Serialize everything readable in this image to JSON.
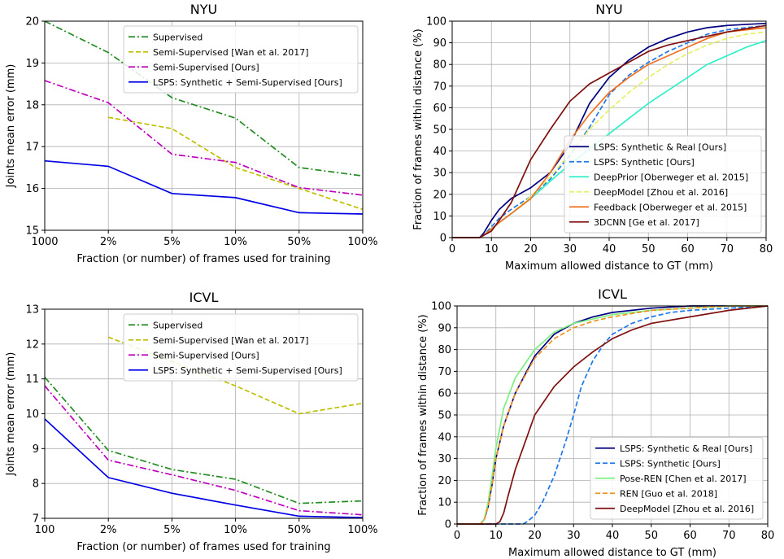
{
  "chart_data": [
    {
      "type": "line",
      "title": "NYU",
      "xlabel": "Fraction (or number) of frames used for training",
      "ylabel": "Joints mean error (mm)",
      "categories": [
        "1000",
        "2%",
        "5%",
        "10%",
        "50%",
        "100%"
      ],
      "ylim": [
        15,
        20
      ],
      "yticks": [
        15,
        16,
        17,
        18,
        19,
        20
      ],
      "grid": true,
      "legend_position": "upper-right",
      "series": [
        {
          "name": "Supervised",
          "color": "#228b22",
          "dash": "dashdot",
          "values": [
            20.0,
            19.25,
            18.17,
            17.68,
            16.5,
            16.3
          ]
        },
        {
          "name": "Semi-Supervised [Wan et al. 2017]",
          "color": "#bfbf00",
          "dash": "dashed",
          "values": [
            null,
            17.7,
            17.43,
            16.5,
            16.0,
            15.5
          ]
        },
        {
          "name": "Semi-Supervised [Ours]",
          "color": "#bf00bf",
          "dash": "dashdot",
          "values": [
            18.58,
            18.05,
            16.82,
            16.62,
            16.02,
            15.84
          ]
        },
        {
          "name": "LSPS: Synthetic + Semi-Supervised [Ours]",
          "color": "#0000e6",
          "dash": "solid",
          "values": [
            16.66,
            16.53,
            15.88,
            15.78,
            15.42,
            15.39
          ]
        }
      ]
    },
    {
      "type": "line",
      "title": "NYU",
      "xlabel": "Maximum allowed distance to GT (mm)",
      "ylabel": "Fraction of frames within distance (%)",
      "xlim": [
        0,
        80
      ],
      "ylim": [
        0,
        100
      ],
      "xticks": [
        0,
        10,
        20,
        30,
        40,
        50,
        60,
        70,
        80
      ],
      "yticks": [
        0,
        10,
        20,
        30,
        40,
        50,
        60,
        70,
        80,
        90,
        100
      ],
      "grid": true,
      "legend_position": "lower-right",
      "series": [
        {
          "name": "LSPS: Synthetic & Real [Ours]",
          "color": "#00007f",
          "dash": "solid",
          "x": [
            0,
            7,
            8,
            10,
            12,
            15,
            20,
            25,
            30,
            35,
            40,
            45,
            50,
            55,
            60,
            65,
            70,
            80
          ],
          "y": [
            0,
            0,
            2,
            8,
            13,
            18,
            23,
            30,
            43,
            62,
            74,
            82,
            88,
            92,
            95,
            97,
            98,
            99
          ]
        },
        {
          "name": "LSPS: Synthetic [Ours]",
          "color": "#1f77e8",
          "dash": "dashed",
          "x": [
            0,
            7,
            8,
            10,
            12,
            15,
            20,
            25,
            30,
            35,
            40,
            45,
            50,
            55,
            60,
            65,
            70,
            80
          ],
          "y": [
            0,
            0,
            1,
            5,
            9,
            13,
            19,
            27,
            38,
            51,
            66,
            75,
            81,
            86,
            90,
            94,
            96,
            98
          ]
        },
        {
          "name": "DeepPrior [Oberweger et al. 2015]",
          "color": "#2ef0c8",
          "dash": "solid",
          "x": [
            0,
            7,
            8,
            10,
            12,
            15,
            20,
            25,
            30,
            35,
            40,
            45,
            50,
            55,
            60,
            65,
            70,
            75,
            80
          ],
          "y": [
            0,
            0,
            1,
            4,
            7,
            11,
            18,
            26,
            34,
            41,
            48,
            55,
            62,
            68,
            74,
            80,
            84,
            88,
            91
          ]
        },
        {
          "name": "DeepModel [Zhou et al. 2016]",
          "color": "#e8f060",
          "dash": "dashed",
          "x": [
            0,
            7,
            8,
            10,
            12,
            15,
            20,
            25,
            30,
            35,
            40,
            45,
            50,
            55,
            60,
            65,
            70,
            75,
            80
          ],
          "y": [
            0,
            0,
            1,
            4,
            7,
            11,
            19,
            28,
            39,
            50,
            59,
            67,
            74,
            80,
            85,
            89,
            92,
            94,
            95
          ]
        },
        {
          "name": "Feedback [Oberweger et al. 2015]",
          "color": "#f07020",
          "dash": "solid",
          "x": [
            0,
            7,
            8,
            10,
            12,
            15,
            20,
            25,
            30,
            35,
            40,
            45,
            50,
            55,
            60,
            65,
            70,
            80
          ],
          "y": [
            0,
            0,
            1,
            4,
            7,
            11,
            18,
            30,
            45,
            57,
            67,
            74,
            80,
            84,
            88,
            92,
            95,
            97
          ]
        },
        {
          "name": "3DCNN [Ge et al. 2017]",
          "color": "#7f1010",
          "dash": "solid",
          "x": [
            0,
            7,
            8,
            10,
            12,
            15,
            20,
            25,
            30,
            35,
            40,
            45,
            50,
            55,
            60,
            65,
            70,
            80
          ],
          "y": [
            0,
            0,
            1,
            3,
            8,
            16,
            36,
            50,
            63,
            71,
            76,
            81,
            86,
            89,
            91,
            93,
            95,
            98
          ]
        }
      ]
    },
    {
      "type": "line",
      "title": "ICVL",
      "xlabel": "Fraction (or number) of frames used for training",
      "ylabel": "Joints mean error (mm)",
      "categories": [
        "100",
        "2%",
        "5%",
        "10%",
        "50%",
        "100%"
      ],
      "ylim": [
        7,
        13
      ],
      "yticks": [
        7,
        8,
        9,
        10,
        11,
        12,
        13
      ],
      "grid": true,
      "legend_position": "upper-right",
      "series": [
        {
          "name": "Supervised",
          "color": "#228b22",
          "dash": "dashdot",
          "values": [
            11.05,
            8.95,
            8.4,
            8.12,
            7.43,
            7.5
          ]
        },
        {
          "name": "Semi-Supervised [Wan et al. 2017]",
          "color": "#bfbf00",
          "dash": "dashed",
          "values": [
            null,
            12.2,
            11.5,
            10.8,
            10.0,
            10.3
          ]
        },
        {
          "name": "Semi-Supervised [Ours]",
          "color": "#bf00bf",
          "dash": "dashdot",
          "values": [
            10.8,
            8.67,
            8.25,
            7.8,
            7.22,
            7.1
          ]
        },
        {
          "name": "LSPS: Synthetic + Semi-Supervised [Ours]",
          "color": "#0000e6",
          "dash": "solid",
          "values": [
            9.85,
            8.17,
            7.72,
            7.38,
            7.06,
            7.02
          ]
        }
      ]
    },
    {
      "type": "line",
      "title": "ICVL",
      "xlabel": "Maximum allowed distance to GT (mm)",
      "ylabel": "Fraction of frames within distance (%)",
      "xlim": [
        0,
        80
      ],
      "ylim": [
        0,
        100
      ],
      "xticks": [
        0,
        10,
        20,
        30,
        40,
        50,
        60,
        70,
        80
      ],
      "yticks": [
        0,
        10,
        20,
        30,
        40,
        50,
        60,
        70,
        80,
        90,
        100
      ],
      "grid": true,
      "legend_position": "lower-right",
      "series": [
        {
          "name": "LSPS: Synthetic & Real [Ours]",
          "color": "#00007f",
          "dash": "solid",
          "x": [
            0,
            6,
            7,
            8,
            9,
            10,
            12,
            15,
            20,
            25,
            30,
            35,
            40,
            45,
            50,
            60,
            70,
            80
          ],
          "y": [
            0,
            0,
            2,
            8,
            18,
            30,
            45,
            60,
            77,
            87,
            92,
            95,
            97,
            98,
            99,
            100,
            100,
            100
          ]
        },
        {
          "name": "LSPS: Synthetic [Ours]",
          "color": "#1f77e8",
          "dash": "dashed",
          "x": [
            0,
            17,
            18,
            20,
            22,
            25,
            28,
            30,
            32,
            35,
            38,
            40,
            45,
            50,
            55,
            60,
            70,
            80
          ],
          "y": [
            0,
            0,
            1,
            4,
            10,
            22,
            38,
            50,
            63,
            75,
            83,
            87,
            92,
            95,
            97,
            98,
            99,
            100
          ]
        },
        {
          "name": "Pose-REN [Chen et al. 2017]",
          "color": "#7cf080",
          "dash": "solid",
          "x": [
            0,
            6,
            7,
            8,
            9,
            10,
            12,
            15,
            20,
            25,
            30,
            35,
            40,
            50,
            60,
            70,
            80
          ],
          "y": [
            0,
            0,
            2,
            10,
            22,
            35,
            53,
            67,
            80,
            88,
            92,
            94,
            96,
            98,
            99,
            100,
            100
          ]
        },
        {
          "name": "REN [Guo et al. 2018]",
          "color": "#f09020",
          "dash": "dashed",
          "x": [
            0,
            6,
            7,
            8,
            9,
            10,
            12,
            15,
            20,
            25,
            30,
            35,
            40,
            50,
            60,
            70,
            80
          ],
          "y": [
            0,
            0,
            2,
            8,
            18,
            30,
            45,
            60,
            76,
            85,
            90,
            93,
            95,
            98,
            99,
            100,
            100
          ]
        },
        {
          "name": "DeepModel [Zhou et al. 2016]",
          "color": "#7f1010",
          "dash": "solid",
          "x": [
            0,
            10,
            11,
            12,
            13,
            15,
            18,
            20,
            25,
            30,
            35,
            40,
            45,
            50,
            60,
            70,
            80
          ],
          "y": [
            0,
            0,
            1,
            5,
            12,
            25,
            40,
            50,
            63,
            72,
            79,
            85,
            89,
            92,
            95,
            98,
            100
          ]
        }
      ]
    }
  ]
}
